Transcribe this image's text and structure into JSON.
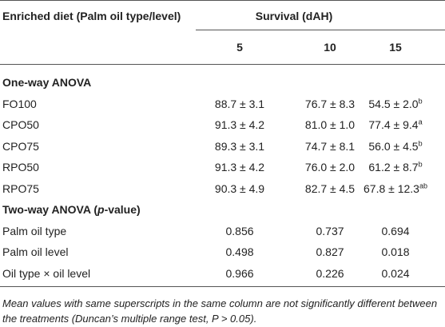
{
  "table": {
    "header": {
      "row_label": "Enriched diet (Palm oil type/level)",
      "group": "Survival (dAH)",
      "columns": [
        "5",
        "10",
        "15"
      ]
    },
    "sections": [
      {
        "title": [
          "One-way ANOVA"
        ],
        "rows": [
          {
            "label": "FO100",
            "cells": [
              {
                "text": "88.7 ± 3.1"
              },
              {
                "text": "76.7 ± 8.3"
              },
              {
                "text": "54.5 ± 2.0",
                "sup": "b"
              }
            ]
          },
          {
            "label": "CPO50",
            "cells": [
              {
                "text": "91.3 ± 4.2"
              },
              {
                "text": "81.0 ± 1.0"
              },
              {
                "text": "77.4 ± 9.4",
                "sup": "a"
              }
            ]
          },
          {
            "label": "CPO75",
            "cells": [
              {
                "text": "89.3 ± 3.1"
              },
              {
                "text": "74.7 ± 8.1"
              },
              {
                "text": "56.0 ± 4.5",
                "sup": "b"
              }
            ]
          },
          {
            "label": "RPO50",
            "cells": [
              {
                "text": "91.3 ± 4.2"
              },
              {
                "text": "76.0 ± 2.0"
              },
              {
                "text": "61.2 ± 8.7",
                "sup": "b"
              }
            ]
          },
          {
            "label": "RPO75",
            "cells": [
              {
                "text": "90.3 ± 4.9"
              },
              {
                "text": "82.7 ± 4.5"
              },
              {
                "text": "67.8 ± 12.3",
                "sup": "ab"
              }
            ]
          }
        ]
      },
      {
        "title": [
          "Two-way ANOVA (",
          "p",
          "-value)"
        ],
        "rows": [
          {
            "label": "Palm oil type",
            "cells": [
              {
                "text": "0.856"
              },
              {
                "text": "0.737"
              },
              {
                "text": "0.694"
              }
            ]
          },
          {
            "label": "Palm oil level",
            "cells": [
              {
                "text": "0.498"
              },
              {
                "text": "0.827"
              },
              {
                "text": "0.018"
              }
            ]
          },
          {
            "label": "Oil type × oil level",
            "cells": [
              {
                "text": "0.966"
              },
              {
                "text": "0.226"
              },
              {
                "text": "0.024"
              }
            ]
          }
        ]
      }
    ],
    "footnote": "Mean values with same superscripts in the same column are not significantly different between the treatments (Duncan’s multiple range test, P > 0.05)."
  }
}
